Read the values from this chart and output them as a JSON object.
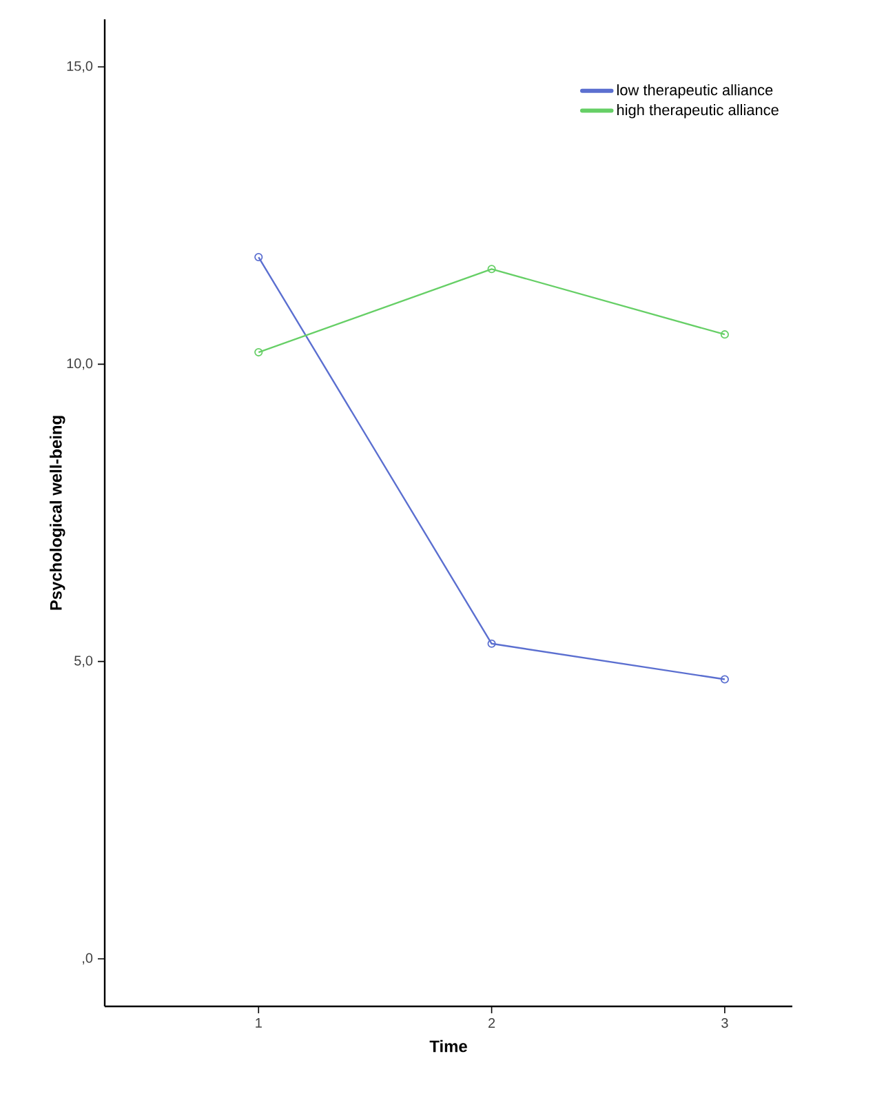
{
  "chart_data": {
    "type": "line",
    "xlabel": "Time",
    "ylabel": "Psychological well-being",
    "categories": [
      "1",
      "2",
      "3"
    ],
    "series": [
      {
        "name": "low therapeutic alliance",
        "color": "#5b6fd0",
        "values": [
          11.8,
          5.3,
          4.7
        ]
      },
      {
        "name": "high therapeutic alliance",
        "color": "#66cf66",
        "values": [
          10.2,
          11.6,
          10.5
        ]
      }
    ],
    "ylim": [
      -0.8,
      15.8
    ],
    "yticks": [
      {
        "value": 0,
        "label": ",0"
      },
      {
        "value": 5,
        "label": "5,0"
      },
      {
        "value": 10,
        "label": "10,0"
      },
      {
        "value": 15,
        "label": "15,0"
      }
    ],
    "marker": "circle",
    "line_style": "solid",
    "legend": "top right",
    "grid": false
  }
}
